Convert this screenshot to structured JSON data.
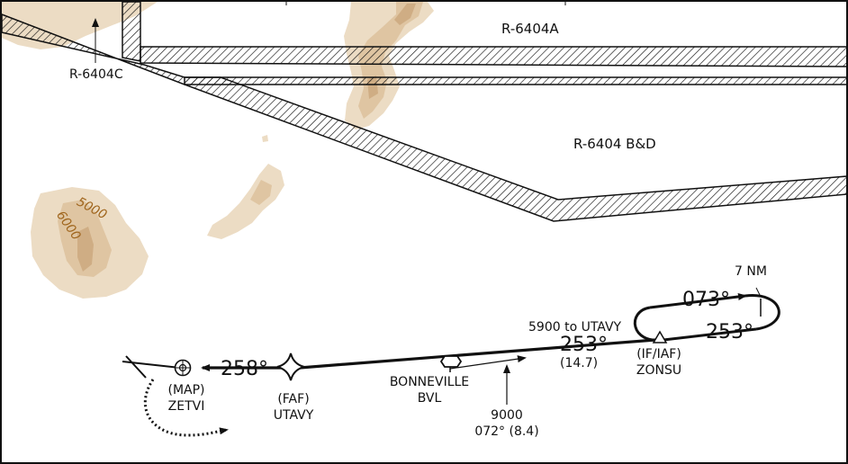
{
  "airspace": {
    "r6404a": "R-6404A",
    "r6404c": "R-6404C",
    "r6404bd": "R-6404 B&D"
  },
  "terrain": {
    "contour_5000": "5000",
    "contour_6000": "6000"
  },
  "procedure": {
    "hold_distance": "7 NM",
    "hold_outbound": "073°",
    "hold_inbound": "253°",
    "segment_alt": "5900 to UTAVY",
    "segment_course": "253°",
    "segment_distance": "(14.7)",
    "final_course": "258°",
    "vor_note_alt": "9000",
    "vor_note_radial": "072° (8.4)"
  },
  "fixes": {
    "zonsu_role": "(IF/IAF)",
    "zonsu_name": "ZONSU",
    "navaid_name": "BONNEVILLE",
    "navaid_id": "BVL",
    "faf_role": "(FAF)",
    "faf_name": "UTAVY",
    "map_role": "(MAP)",
    "map_name": "ZETVI"
  },
  "colors": {
    "terrain_light": "#ecdcc4",
    "terrain_mid": "#dfc5a2",
    "terrain_dark": "#cfad84",
    "contour_label": "#a0661e",
    "ink": "#111111"
  }
}
